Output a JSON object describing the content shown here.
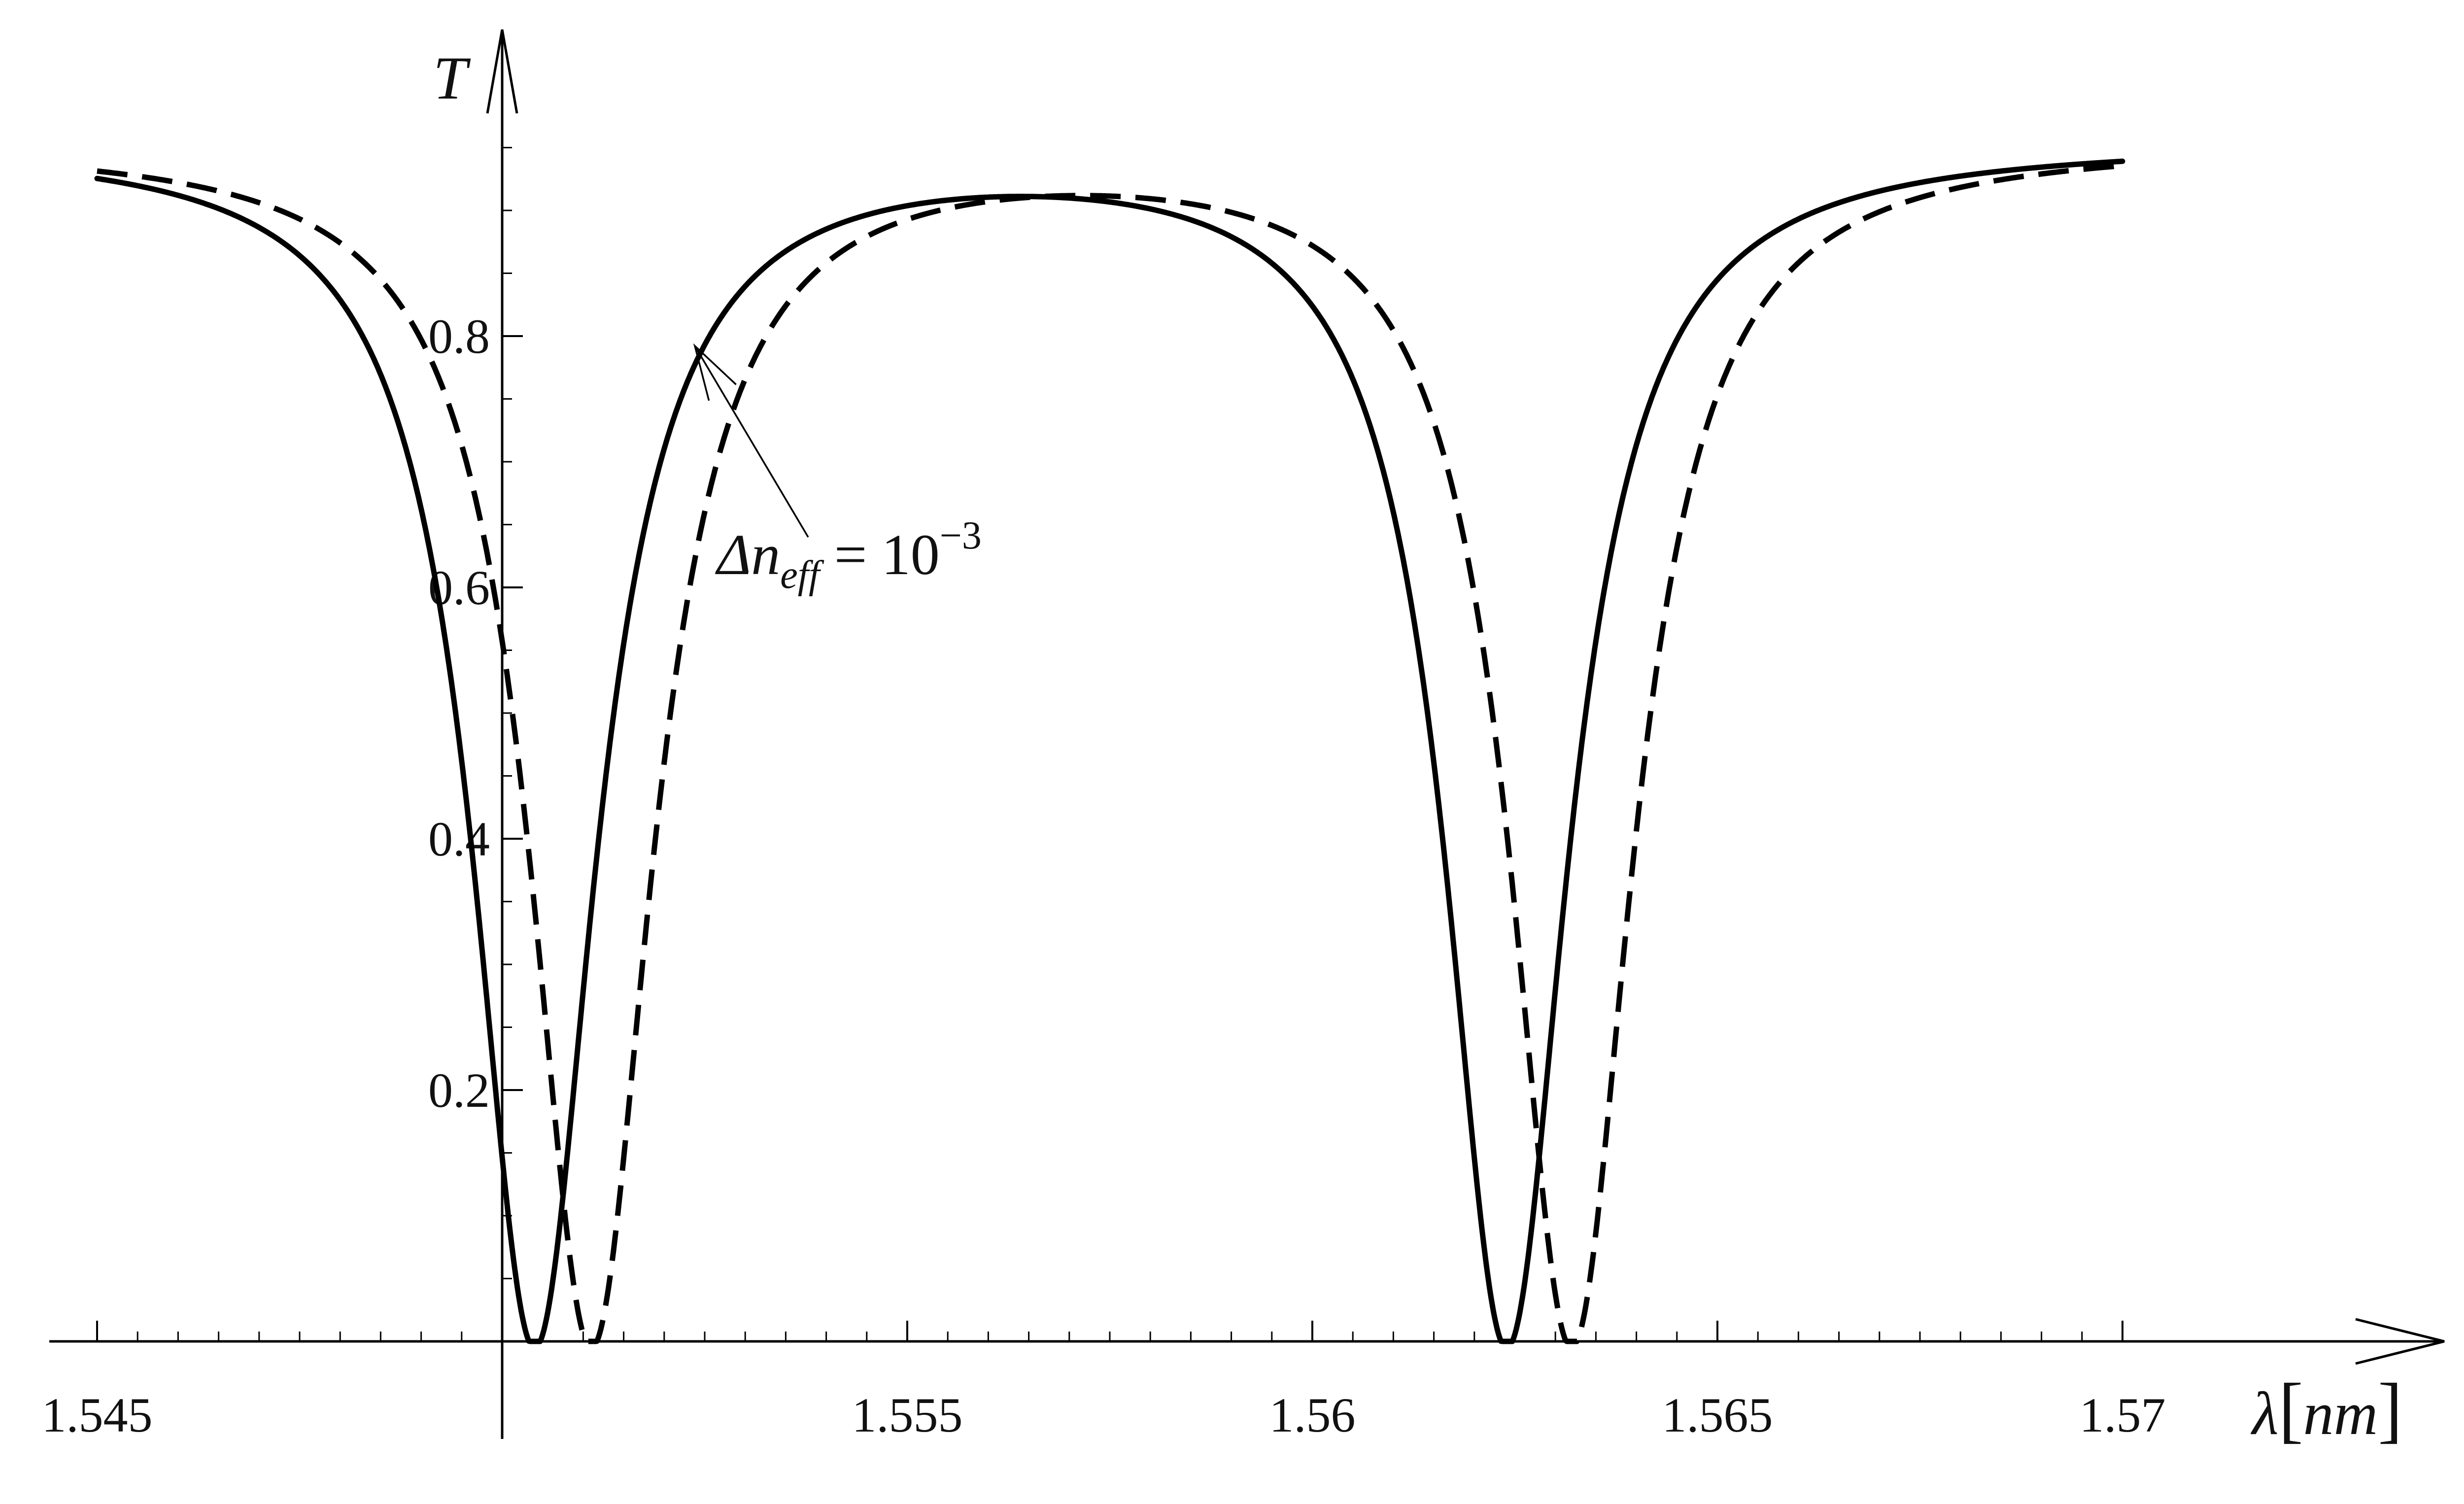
{
  "chart_data": {
    "type": "line",
    "title": "",
    "xlabel": "λ[nm]",
    "ylabel": "T",
    "xlim": [
      1.545,
      1.575
    ],
    "ylim": [
      0,
      0.98
    ],
    "x_ticks": [
      1.545,
      1.555,
      1.56,
      1.565,
      1.57
    ],
    "x_tick_labels": [
      "1.545",
      "1.555",
      "1.56",
      "1.565",
      "1.57"
    ],
    "y_ticks": [
      0.2,
      0.4,
      0.6,
      0.8
    ],
    "y_tick_labels": [
      "0.2",
      "0.4",
      "0.6",
      "0.8"
    ],
    "grid": false,
    "legend": "none",
    "series": [
      {
        "style": "solid",
        "color": "#000000",
        "x_range": [
          1.545,
          1.57
        ],
        "dips": [
          1.5504,
          1.5624
        ],
        "max": 0.955,
        "min": 0.0
      },
      {
        "style": "dashed",
        "color": "#000000",
        "x_range": [
          1.545,
          1.57
        ],
        "dips": [
          1.5511,
          1.5632
        ],
        "max": 0.955,
        "min": 0.0
      }
    ],
    "annotations": [
      {
        "text_prefix": "Δn",
        "text_subscript": "eff",
        "text_suffix": " = 10",
        "text_superscript": "−3",
        "points_to": {
          "x": 1.5525,
          "y": 0.8
        }
      }
    ]
  }
}
